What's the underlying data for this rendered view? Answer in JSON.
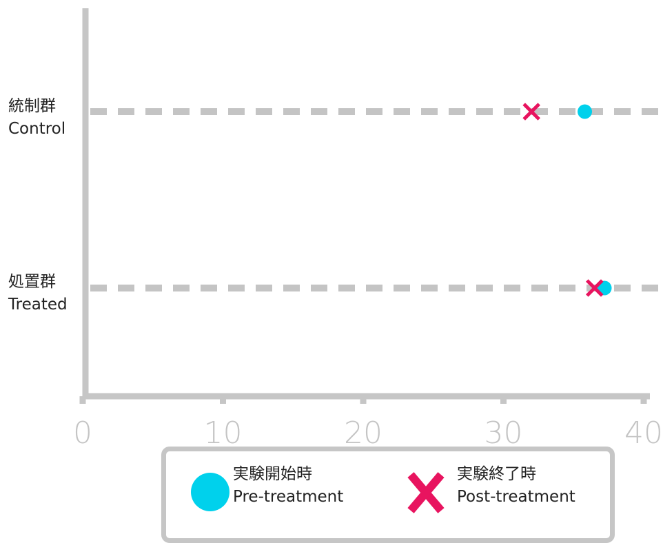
{
  "chart_data": {
    "type": "scatter",
    "orientation": "horizontal",
    "categories": [
      {
        "jp": "統制群",
        "en": "Control"
      },
      {
        "jp": "処置群",
        "en": "Treated"
      }
    ],
    "series": [
      {
        "name_jp": "実験開始時",
        "name_en": "Pre-treatment",
        "marker": "circle",
        "color": "#00d1ec",
        "values": [
          35.8,
          37.2
        ]
      },
      {
        "name_jp": "実験終了時",
        "name_en": "Post-treatment",
        "marker": "cross",
        "color": "#e8145f",
        "values": [
          32.0,
          36.5
        ]
      }
    ],
    "xlim": [
      0,
      40
    ],
    "xticks": [
      0,
      10,
      20,
      30,
      40
    ],
    "title": "",
    "xlabel": "",
    "ylabel": "",
    "grid": false,
    "legend_position": "bottom",
    "axis_color": "#c6c6c6",
    "guide_color": "#c4c4c4",
    "tick_label_color": "#c4c4c4"
  }
}
